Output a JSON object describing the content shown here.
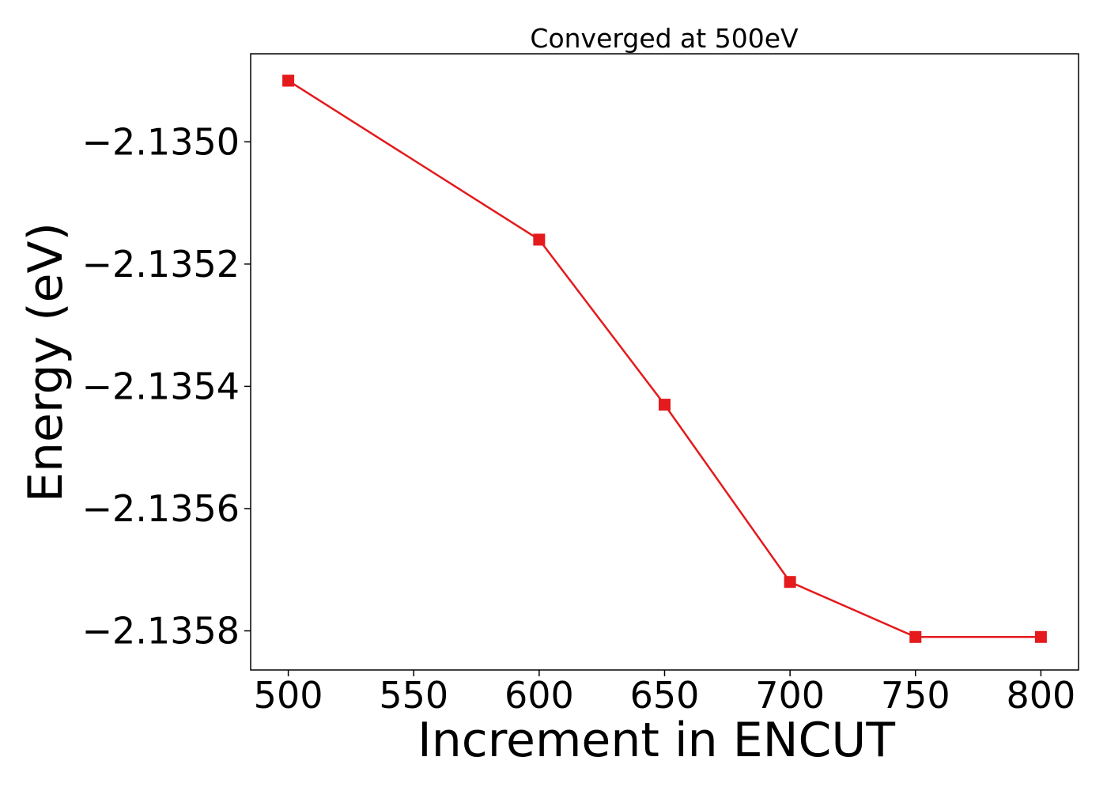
{
  "chart_data": {
    "type": "line",
    "title": "Converged at 500eV",
    "xlabel": "Increment in ENCUT",
    "ylabel": "Energy (eV)",
    "x": [
      500,
      600,
      650,
      700,
      750,
      800
    ],
    "series": [
      {
        "values": [
          -2.1349,
          -2.13516,
          -2.13543,
          -2.13572,
          -2.13581,
          -2.13581
        ],
        "color": "#e41a1c",
        "marker": "square"
      }
    ],
    "xlim": [
      485,
      815
    ],
    "ylim": [
      -2.135864,
      -2.134856
    ],
    "xticks": [
      500,
      550,
      600,
      650,
      700,
      750,
      800
    ],
    "xtick_labels": [
      "500",
      "550",
      "600",
      "650",
      "700",
      "750",
      "800"
    ],
    "yticks": [
      -2.135,
      -2.1352,
      -2.1354,
      -2.1356,
      -2.1358
    ],
    "ytick_labels": [
      "−2.1350",
      "−2.1352",
      "−2.1354",
      "−2.1356",
      "−2.1358"
    ],
    "grid": false,
    "legend": "none"
  }
}
